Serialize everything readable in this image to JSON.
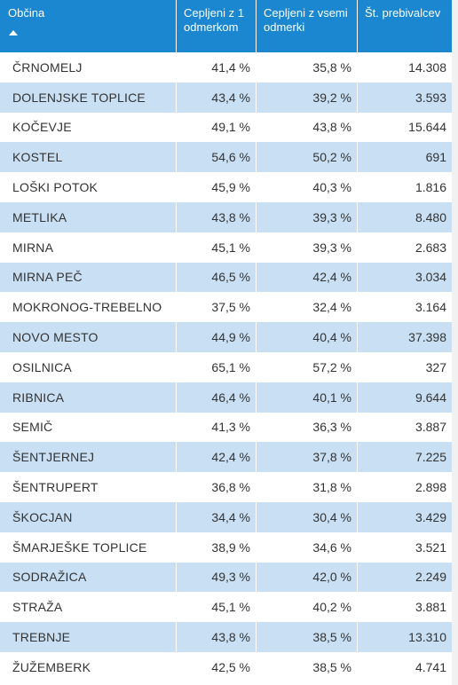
{
  "table": {
    "headers": [
      {
        "label": "Občina"
      },
      {
        "label": "Cepljeni z 1 odmerkom"
      },
      {
        "label": "Cepljeni z vsemi odmerki"
      },
      {
        "label": "Št. prebivalcev"
      }
    ],
    "sort": {
      "column": "Občina",
      "direction": "ascending",
      "icon": "sort-ascending-icon"
    },
    "row_colors": {
      "even": "#c9dff3",
      "odd": "#ffffff",
      "header": "#1a87d0"
    },
    "rows": [
      [
        "ČRNOMELJ",
        "41,4 %",
        "35,8 %",
        "14.308"
      ],
      [
        "DOLENJSKE TOPLICE",
        "43,4 %",
        "39,2 %",
        "3.593"
      ],
      [
        "KOČEVJE",
        "49,1 %",
        "43,8 %",
        "15.644"
      ],
      [
        "KOSTEL",
        "54,6 %",
        "50,2 %",
        "691"
      ],
      [
        "LOŠKI POTOK",
        "45,9 %",
        "40,3 %",
        "1.816"
      ],
      [
        "METLIKA",
        "43,8 %",
        "39,3 %",
        "8.480"
      ],
      [
        "MIRNA",
        "45,1 %",
        "39,3 %",
        "2.683"
      ],
      [
        "MIRNA PEČ",
        "46,5 %",
        "42,4 %",
        "3.034"
      ],
      [
        "MOKRONOG-TREBELNO",
        "37,5 %",
        "32,4 %",
        "3.164"
      ],
      [
        "NOVO MESTO",
        "44,9 %",
        "40,4 %",
        "37.398"
      ],
      [
        "OSILNICA",
        "65,1 %",
        "57,2 %",
        "327"
      ],
      [
        "RIBNICA",
        "46,4 %",
        "40,1 %",
        "9.644"
      ],
      [
        "SEMIČ",
        "41,3 %",
        "36,3 %",
        "3.887"
      ],
      [
        "ŠENTJERNEJ",
        "42,4 %",
        "37,8 %",
        "7.225"
      ],
      [
        "ŠENTRUPERT",
        "36,8 %",
        "31,8 %",
        "2.898"
      ],
      [
        "ŠKOCJAN",
        "34,4 %",
        "30,4 %",
        "3.429"
      ],
      [
        "ŠMARJEŠKE TOPLICE",
        "38,9 %",
        "34,6 %",
        "3.521"
      ],
      [
        "SODRAŽICA",
        "49,3 %",
        "42,0 %",
        "2.249"
      ],
      [
        "STRAŽA",
        "45,1 %",
        "40,2 %",
        "3.881"
      ],
      [
        "TREBNJE",
        "43,8 %",
        "38,5 %",
        "13.310"
      ],
      [
        "ŽUŽEMBERK",
        "42,5 %",
        "38,5 %",
        "4.741"
      ]
    ]
  }
}
